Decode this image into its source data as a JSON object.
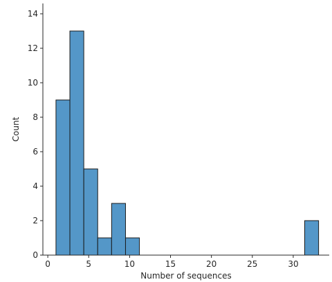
{
  "chart_data": {
    "type": "bar",
    "title": "",
    "xlabel": "Number of sequences",
    "ylabel": "Count",
    "xlim": [
      -0.6,
      34.4
    ],
    "ylim": [
      0,
      14.6
    ],
    "x_ticks": [
      0,
      5,
      10,
      15,
      20,
      25,
      30
    ],
    "y_ticks": [
      0,
      2,
      4,
      6,
      8,
      10,
      12,
      14
    ],
    "bins": [
      {
        "x0": 1.0,
        "x1": 2.7,
        "count": 9
      },
      {
        "x0": 2.7,
        "x1": 4.4,
        "count": 13
      },
      {
        "x0": 4.4,
        "x1": 6.1,
        "count": 5
      },
      {
        "x0": 6.1,
        "x1": 7.8,
        "count": 1
      },
      {
        "x0": 7.8,
        "x1": 9.5,
        "count": 3
      },
      {
        "x0": 9.5,
        "x1": 11.2,
        "count": 1
      },
      {
        "x0": 31.4,
        "x1": 33.1,
        "count": 2
      }
    ],
    "bar_color": "#5497c8",
    "edge_color": "#1a1a1a",
    "grid": false
  }
}
